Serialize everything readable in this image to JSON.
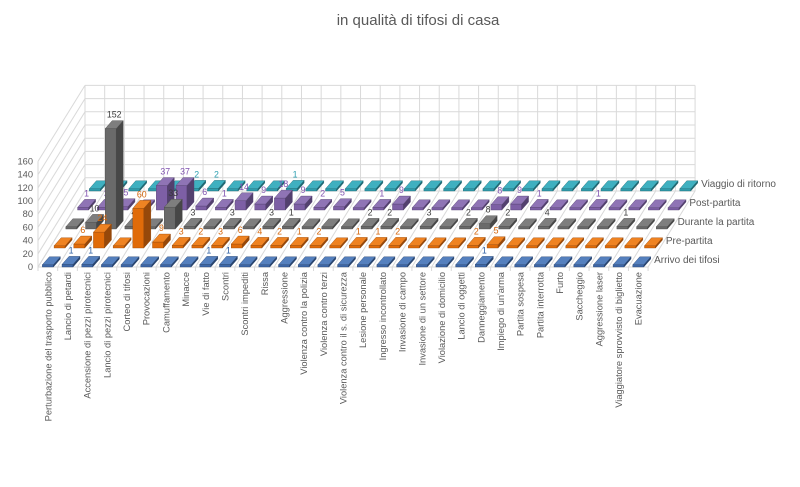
{
  "title": "in qualità di tifosi di casa",
  "chart_data": {
    "type": "bar",
    "subtype": "3d-bar-rows",
    "title": "in qualità di tifosi di casa",
    "ylim": [
      0,
      160
    ],
    "y_ticks": [
      0,
      20,
      40,
      60,
      80,
      100,
      120,
      140,
      160
    ],
    "grid": true,
    "legend_position": "right-row-labels",
    "categories": [
      "Perturbazione del trasporto pubblico",
      "Lancio di petardi",
      "Accensione di pezzi pirotecnici",
      "Lancio di pezzi pirotecnici",
      "Corteo di tifosi",
      "Provocazioni",
      "Camuffamento",
      "Minacce",
      "Vie di fatto",
      "Scontri",
      "Scontri impediti",
      "Rissa",
      "Aggressione",
      "Violenza contro la polizia",
      "Violenza contro terzi",
      "Violenza contro il s. di sicurezza",
      "Lesione personale",
      "Ingresso incontrollato",
      "Invasione di campo",
      "Invasione di un settore",
      "Violazione di domicilio",
      "Lancio di oggetti",
      "Danneggiamento",
      "Impiego di un'arma",
      "Partita sospesa",
      "Partita interrotta",
      "Furto",
      "Saccheggio",
      "Aggressione laser",
      "Viaggiatore sprovvisto di biglietto",
      "Evacuazione"
    ],
    "series": [
      {
        "name": "Arrivo dei tifosi",
        "color": "#3E68A8",
        "color_top": "#5580BE",
        "color_side": "#28446E",
        "label_color": "#2E5FA3",
        "values": [
          null,
          1,
          1,
          null,
          null,
          null,
          null,
          null,
          1,
          1,
          null,
          null,
          null,
          null,
          null,
          null,
          null,
          null,
          null,
          null,
          null,
          null,
          1,
          null,
          null,
          null,
          null,
          null,
          null,
          null,
          null
        ]
      },
      {
        "name": "Pre-partita",
        "color": "#E06B09",
        "color_top": "#EF8322",
        "color_side": "#96480A",
        "label_color": "#D4650A",
        "values": [
          null,
          6,
          24,
          null,
          60,
          9,
          3,
          2,
          3,
          6,
          4,
          2,
          1,
          2,
          null,
          1,
          1,
          2,
          null,
          null,
          null,
          2,
          5,
          null,
          null,
          null,
          null,
          null,
          null,
          null,
          null
        ]
      },
      {
        "name": "Durante la partita",
        "color": "#6A6A6A",
        "color_top": "#7E7E7E",
        "color_side": "#474747",
        "label_color": "#3B3B3B",
        "values": [
          null,
          10,
          152,
          4,
          null,
          33,
          3,
          null,
          3,
          null,
          3,
          1,
          null,
          null,
          null,
          2,
          2,
          null,
          3,
          null,
          2,
          8,
          2,
          null,
          4,
          null,
          null,
          null,
          1,
          null,
          null
        ]
      },
      {
        "name": "Post-partita",
        "color": "#7D5FA5",
        "color_top": "#8F74B5",
        "color_side": "#53406E",
        "label_color": "#8053B0",
        "values": [
          1,
          3,
          5,
          null,
          37,
          37,
          6,
          1,
          14,
          9,
          18,
          9,
          2,
          5,
          null,
          1,
          9,
          null,
          null,
          null,
          null,
          8,
          9,
          1,
          null,
          null,
          1,
          null,
          null,
          null,
          null
        ]
      },
      {
        "name": "Viaggio di ritorno",
        "color": "#2F9CAC",
        "color_top": "#3FB0C0",
        "color_side": "#1F6872",
        "label_color": "#2C9FB0",
        "values": [
          null,
          null,
          null,
          null,
          null,
          2,
          2,
          null,
          null,
          null,
          1,
          null,
          null,
          null,
          null,
          null,
          null,
          null,
          null,
          null,
          null,
          null,
          null,
          null,
          null,
          null,
          null,
          null,
          null,
          null,
          null
        ]
      }
    ],
    "axis_text_color": "#595959",
    "gridline_color": "#D9D9D9"
  }
}
